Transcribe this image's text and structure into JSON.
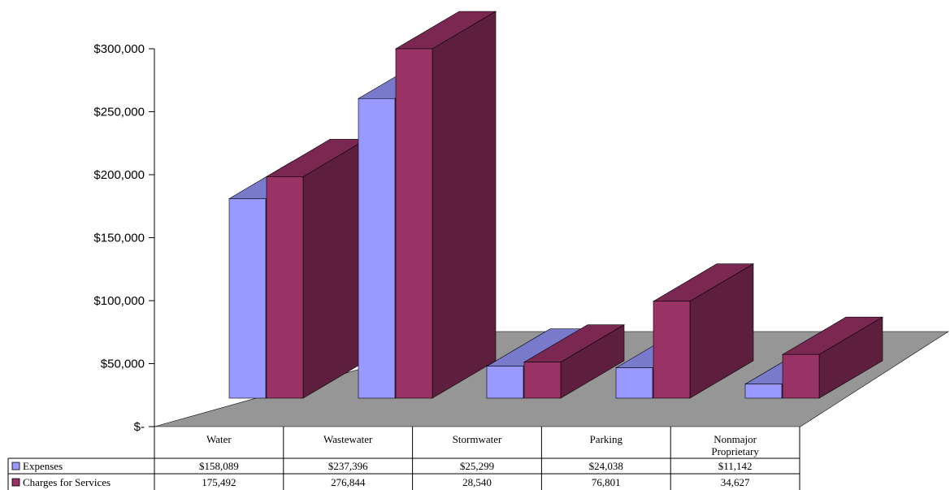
{
  "chart_data": {
    "type": "bar",
    "title": "",
    "xlabel": "",
    "ylabel": "",
    "ylim": [
      0,
      300000
    ],
    "y_ticks": [
      "$-",
      "$50,000",
      "$100,000",
      "$150,000",
      "$200,000",
      "$250,000",
      "$300,000"
    ],
    "categories": [
      "Water",
      "Wastewater",
      "Stormwater",
      "Parking",
      "Nonmajor Proprietary"
    ],
    "series": [
      {
        "name": "Expenses",
        "values": [
          158089,
          237396,
          25299,
          24038,
          11142
        ],
        "labels": [
          "$158,089",
          "$237,396",
          "$25,299",
          "$24,038",
          "$11,142"
        ],
        "color": "#9999ff",
        "side_color": "#5c5c99",
        "top_color": "#7a7acc"
      },
      {
        "name": "Charges for Services",
        "values": [
          175492,
          276844,
          28540,
          76801,
          34627
        ],
        "labels": [
          "175,492",
          "276,844",
          "28,540",
          "76,801",
          "34,627"
        ],
        "color": "#993366",
        "side_color": "#5e1f3f",
        "top_color": "#7a2852"
      }
    ],
    "floor_color": "#969696",
    "three_d": true,
    "legend": "data-table"
  }
}
